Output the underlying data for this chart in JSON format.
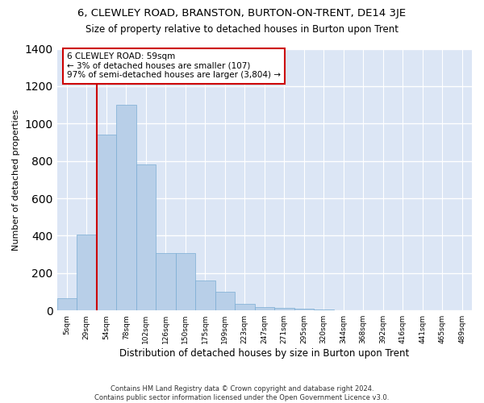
{
  "title": "6, CLEWLEY ROAD, BRANSTON, BURTON-ON-TRENT, DE14 3JE",
  "subtitle": "Size of property relative to detached houses in Burton upon Trent",
  "xlabel": "Distribution of detached houses by size in Burton upon Trent",
  "ylabel": "Number of detached properties",
  "annotation_line1": "6 CLEWLEY ROAD: 59sqm",
  "annotation_line2": "← 3% of detached houses are smaller (107)",
  "annotation_line3": "97% of semi-detached houses are larger (3,804) →",
  "footer1": "Contains HM Land Registry data © Crown copyright and database right 2024.",
  "footer2": "Contains public sector information licensed under the Open Government Licence v3.0.",
  "categories": [
    "5sqm",
    "29sqm",
    "54sqm",
    "78sqm",
    "102sqm",
    "126sqm",
    "150sqm",
    "175sqm",
    "199sqm",
    "223sqm",
    "247sqm",
    "271sqm",
    "295sqm",
    "320sqm",
    "344sqm",
    "368sqm",
    "392sqm",
    "416sqm",
    "441sqm",
    "465sqm",
    "489sqm"
  ],
  "values": [
    65,
    405,
    940,
    1100,
    780,
    305,
    305,
    160,
    100,
    35,
    20,
    15,
    10,
    5,
    3,
    2,
    1,
    0,
    0,
    0,
    0
  ],
  "bar_color": "#b8cfe8",
  "bar_edgecolor": "#7aadd4",
  "vline_bin_index": 2,
  "vline_color": "#cc0000",
  "annotation_box_color": "#cc0000",
  "background_color": "#dce6f5",
  "ylim": [
    0,
    1400
  ],
  "yticks": [
    0,
    200,
    400,
    600,
    800,
    1000,
    1200,
    1400
  ]
}
